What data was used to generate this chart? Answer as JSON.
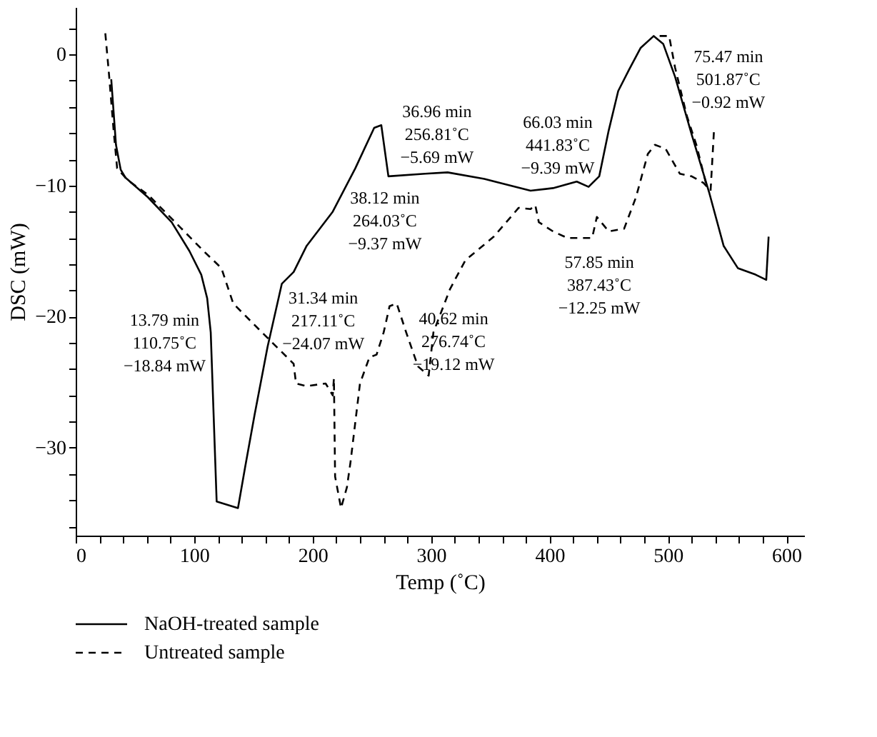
{
  "chart_data": {
    "type": "line",
    "xlabel": "Temp (˚C)",
    "ylabel": "DSC (mW)",
    "xlim": [
      0,
      615
    ],
    "ylim": [
      -36.7,
      3.6
    ],
    "xticks": [
      0,
      {
        "value": 20,
        "label": null
      },
      {
        "value": 40,
        "label": null
      },
      {
        "value": 60,
        "label": null
      },
      {
        "value": 80,
        "label": null
      },
      100,
      {
        "value": 120,
        "label": null
      },
      {
        "value": 140,
        "label": null
      },
      {
        "value": 160,
        "label": null
      },
      {
        "value": 180,
        "label": null
      },
      200,
      {
        "value": 220,
        "label": null
      },
      {
        "value": 240,
        "label": null
      },
      {
        "value": 260,
        "label": null
      },
      {
        "value": 280,
        "label": null
      },
      300,
      {
        "value": 320,
        "label": null
      },
      {
        "value": 340,
        "label": null
      },
      {
        "value": 360,
        "label": null
      },
      {
        "value": 380,
        "label": null
      },
      400,
      {
        "value": 420,
        "label": null
      },
      {
        "value": 440,
        "label": null
      },
      {
        "value": 460,
        "label": null
      },
      {
        "value": 480,
        "label": null
      },
      500,
      {
        "value": 520,
        "label": null
      },
      {
        "value": 540,
        "label": null
      },
      {
        "value": 560,
        "label": null
      },
      {
        "value": 580,
        "label": null
      },
      600
    ],
    "yticks": [
      {
        "value": -36,
        "label": null
      },
      {
        "value": -34,
        "label": null
      },
      {
        "value": -32,
        "label": null
      },
      -30,
      {
        "value": -28,
        "label": null
      },
      {
        "value": -26,
        "label": null
      },
      {
        "value": -24,
        "label": null
      },
      {
        "value": -22,
        "label": null
      },
      -20,
      {
        "value": -18,
        "label": null
      },
      {
        "value": -16,
        "label": null
      },
      {
        "value": -14,
        "label": null
      },
      {
        "value": -12,
        "label": null
      },
      -10,
      {
        "value": -8,
        "label": null
      },
      {
        "value": -6,
        "label": null
      },
      {
        "value": -4,
        "label": null
      },
      {
        "value": -2,
        "label": null
      },
      0,
      {
        "value": 2,
        "label": null
      }
    ],
    "grid": false,
    "legend": "bottom",
    "marker": "none",
    "series": [
      {
        "name": "NaOH-treated sample",
        "color": "#000000",
        "line_style": "solid",
        "x": [
          30,
          34,
          38,
          42,
          61,
          81,
          96,
          106,
          111,
          114,
          119,
          137,
          143,
          151,
          162,
          174,
          184,
          195,
          217,
          236,
          252,
          258,
          264,
          295,
          314,
          345,
          384,
          403,
          423,
          433,
          442,
          450,
          458,
          467,
          477,
          488,
          496,
          506,
          520,
          535,
          547,
          559,
          574,
          583,
          585
        ],
        "values": [
          -1.9,
          -6.9,
          -8.8,
          -9.4,
          -10.9,
          -12.8,
          -15,
          -16.8,
          -18.6,
          -21.2,
          -34.1,
          -34.6,
          -31.5,
          -27.5,
          -22.3,
          -17.5,
          -16.6,
          -14.6,
          -12,
          -8.7,
          -5.6,
          -5.4,
          -9.3,
          -9.1,
          -9.0,
          -9.5,
          -10.4,
          -10.2,
          -9.7,
          -10.1,
          -9.3,
          -5.8,
          -2.8,
          -1.2,
          0.5,
          1.4,
          0.8,
          -1.7,
          -6.1,
          -10.6,
          -14.6,
          -16.3,
          -16.8,
          -17.2,
          -13.9
        ]
      },
      {
        "name": "Untreated sample",
        "color": "#000000",
        "line_style": "dashed",
        "x": [
          25,
          28,
          32,
          35,
          44,
          61,
          84,
          108,
          123,
          133,
          155,
          174,
          184,
          186,
          195,
          211,
          217,
          218,
          219,
          224,
          229,
          232,
          240,
          248,
          254,
          260,
          265,
          271,
          279,
          289,
          298,
          302,
          316,
          329,
          353,
          374,
          384,
          388,
          391,
          403,
          415,
          436,
          440,
          450,
          463,
          473,
          483,
          489,
          498,
          510,
          520,
          530,
          536,
          539,
          null,
          493,
          501,
          506,
          516,
          524,
          532
        ],
        "values": [
          1.6,
          -1.4,
          -5.8,
          -8.7,
          -9.6,
          -10.7,
          -12.8,
          -15,
          -16.3,
          -19,
          -21,
          -22.7,
          -23.6,
          -25.1,
          -25.3,
          -25.1,
          -26,
          -24.7,
          -32.2,
          -34.6,
          -33,
          -31.1,
          -25.1,
          -23.1,
          -22.9,
          -21.2,
          -19.2,
          -19,
          -21.2,
          -23.8,
          -24.5,
          -21.2,
          -17.9,
          -15.7,
          -13.9,
          -11.7,
          -11.8,
          -11.5,
          -12.8,
          -13.5,
          -14,
          -14,
          -12.4,
          -13.5,
          -13.3,
          -10.9,
          -7.6,
          -6.9,
          -7.2,
          -9.1,
          -9.3,
          -9.8,
          -10.4,
          -5.6,
          null,
          1.4,
          1.4,
          -1,
          -4.7,
          -6.9,
          -9.8
        ]
      }
    ],
    "annotations": [
      {
        "text": "13.79 min\n110.75˚C\n−18.84 mW",
        "x": 110.75,
        "y": -18.84
      },
      {
        "text": "31.34 min\n217.11˚C\n−24.07 mW",
        "x": 217.11,
        "y": -24.07
      },
      {
        "text": "36.96 min\n256.81˚C\n−5.69 mW",
        "x": 256.81,
        "y": -5.69
      },
      {
        "text": "38.12 min\n264.03˚C\n−9.37 mW",
        "x": 264.03,
        "y": -9.37
      },
      {
        "text": "40.62 min\n276.74˚C\n−19.12 mW",
        "x": 276.74,
        "y": -19.12
      },
      {
        "text": "66.03 min\n441.83˚C\n−9.39 mW",
        "x": 441.83,
        "y": -9.39
      },
      {
        "text": "57.85 min\n387.43˚C\n−12.25 mW",
        "x": 387.43,
        "y": -12.25
      },
      {
        "text": "75.47 min\n501.87˚C\n−0.92 mW",
        "x": 501.87,
        "y": -0.92
      }
    ]
  }
}
